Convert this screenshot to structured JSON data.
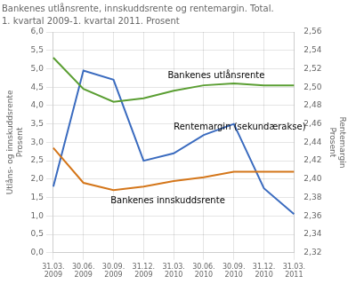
{
  "chart_data": {
    "type": "line",
    "title": "Bankenes utlånsrente, innskuddsrente og rentemargin. Total.",
    "subtitle": "1. kvartal 2009-1. kvartal 2011. Prosent",
    "ylabel": [
      "Utlåns- og innskuddsrente",
      "Prosent"
    ],
    "y2label": [
      "Rentemargin",
      "Prosent"
    ],
    "categories": [
      "31.03.\n2009",
      "30.06.\n2009",
      "30.09.\n2009",
      "31.12.\n2009",
      "31.03.\n2010",
      "30.06.\n2010",
      "30.09.\n2010",
      "31.12.\n2010",
      "31.03.\n2011"
    ],
    "series": [
      {
        "color": "#5a9e32",
        "values": [
          5.3,
          4.45,
          4.1,
          4.2,
          4.4,
          4.55,
          4.6,
          4.55,
          4.55
        ]
      },
      {
        "color": "#d4761a",
        "values": [
          2.85,
          1.9,
          1.7,
          1.8,
          1.95,
          2.05,
          2.2,
          2.2,
          2.2
        ]
      },
      {
        "color": "#3a6bbf",
        "values": [
          1.8,
          4.95,
          4.7,
          2.5,
          2.7,
          3.2,
          3.5,
          1.75,
          1.05
        ]
      }
    ],
    "ylim": [
      0.0,
      6.0
    ],
    "yticks": [
      {
        "value": 0.0,
        "label": "0,0"
      },
      {
        "value": 0.5,
        "label": "0,5"
      },
      {
        "value": 1.0,
        "label": "1,0"
      },
      {
        "value": 1.5,
        "label": "1,5"
      },
      {
        "value": 2.0,
        "label": "2,0"
      },
      {
        "value": 2.5,
        "label": "2,5"
      },
      {
        "value": 3.0,
        "label": "3,0"
      },
      {
        "value": 3.5,
        "label": "3,5"
      },
      {
        "value": 4.0,
        "label": "4,0"
      },
      {
        "value": 4.5,
        "label": "4,5"
      },
      {
        "value": 5.0,
        "label": "5,0"
      },
      {
        "value": 5.5,
        "label": "5,5"
      },
      {
        "value": 6.0,
        "label": "6,0"
      }
    ],
    "y2lim": [
      2.32,
      2.56
    ],
    "y2ticks": [
      {
        "value": 2.32,
        "label": "2,32"
      },
      {
        "value": 2.34,
        "label": "2,34"
      },
      {
        "value": 2.36,
        "label": "2,36"
      },
      {
        "value": 2.38,
        "label": "2,38"
      },
      {
        "value": 2.4,
        "label": "2,40"
      },
      {
        "value": 2.42,
        "label": "2,42"
      },
      {
        "value": 2.44,
        "label": "2,44"
      },
      {
        "value": 2.46,
        "label": "2,46"
      },
      {
        "value": 2.48,
        "label": "2,48"
      },
      {
        "value": 2.5,
        "label": "2,50"
      },
      {
        "value": 2.52,
        "label": "2,52"
      },
      {
        "value": 2.54,
        "label": "2,54"
      },
      {
        "value": 2.56,
        "label": "2,56"
      }
    ],
    "grid": true,
    "annotations": [
      {
        "text": "Bankenes utlånsrente",
        "x": 3.8,
        "y": 4.75
      },
      {
        "text": "Rentemargin (sekundærakse)",
        "x": 4.0,
        "y": 3.35
      },
      {
        "text": "Bankenes innskuddsrente",
        "x": 1.9,
        "y": 1.35
      }
    ]
  }
}
